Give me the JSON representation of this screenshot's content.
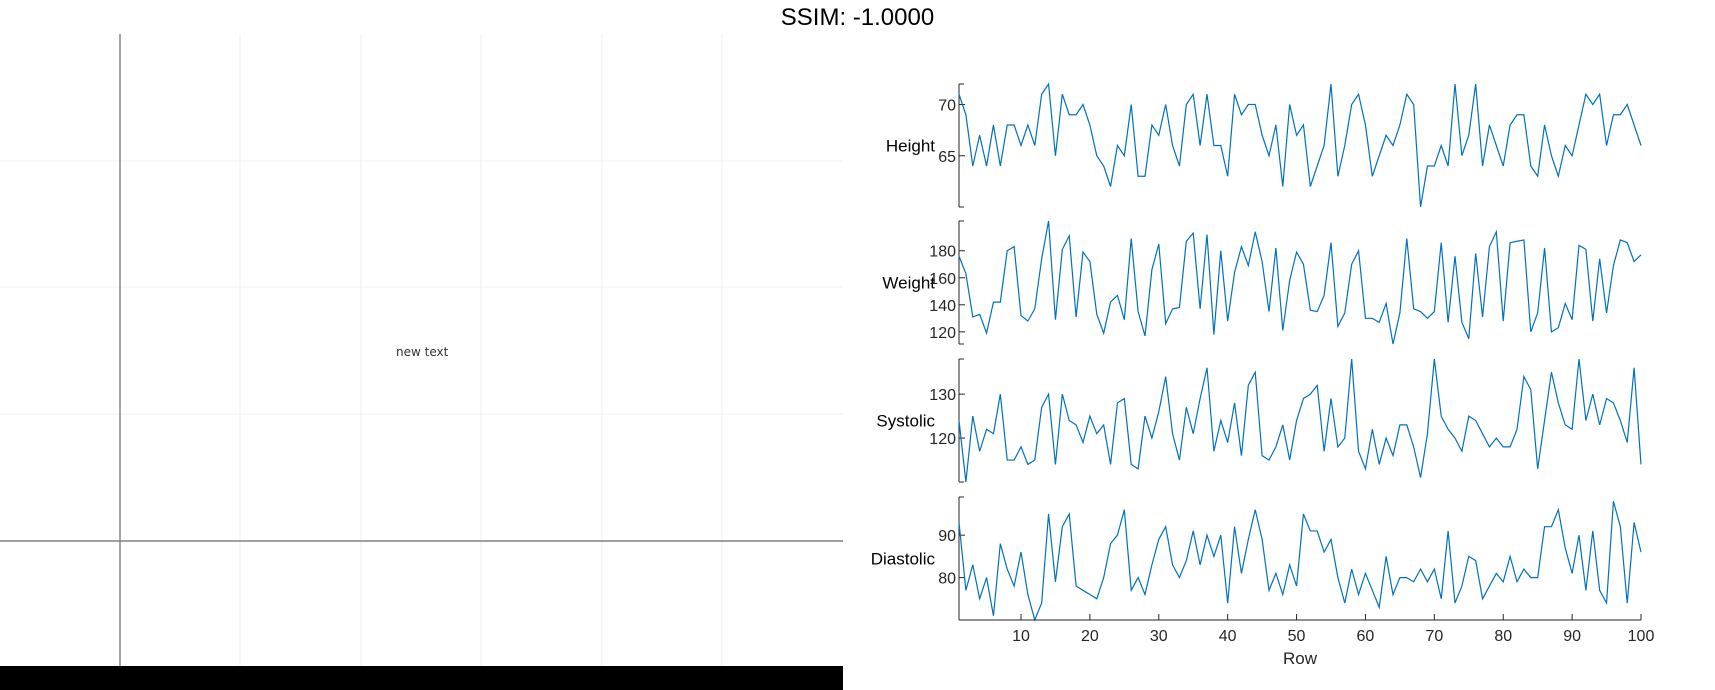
{
  "page_title": "SSIM: -1.0000",
  "left_panel": {
    "annotation": "new text"
  },
  "chart_data": {
    "type": "line",
    "xlabel": "Row",
    "xlim": [
      1,
      100
    ],
    "xticks": [
      10,
      20,
      30,
      40,
      50,
      60,
      70,
      80,
      90,
      100
    ],
    "x_start": 1,
    "series": [
      {
        "name": "Height",
        "ylim": [
          60,
          72
        ],
        "yticks": [
          65,
          70
        ],
        "values": [
          71,
          69,
          64,
          67,
          64,
          68,
          64,
          68,
          68,
          66,
          68,
          66,
          71,
          72,
          65,
          71,
          69,
          69,
          70,
          68,
          65,
          64,
          62,
          66,
          65,
          70,
          63,
          63,
          68,
          67,
          70,
          66,
          64,
          70,
          71,
          66,
          71,
          66,
          66,
          63,
          71,
          69,
          70,
          70,
          67,
          65,
          68,
          62,
          70,
          67,
          68,
          62,
          64,
          66,
          72,
          63,
          66,
          70,
          71,
          68,
          63,
          65,
          67,
          66,
          68,
          71,
          70,
          60,
          64,
          64,
          66,
          64,
          72,
          65,
          67,
          72,
          64,
          68,
          66,
          64,
          68,
          69,
          69,
          64,
          63,
          68,
          65,
          63,
          66,
          65,
          68,
          71,
          70,
          71,
          66,
          69,
          69,
          70,
          68,
          66
        ]
      },
      {
        "name": "Weight",
        "ylim": [
          111,
          202
        ],
        "yticks": [
          120,
          140,
          160,
          180
        ],
        "values": [
          176,
          163,
          131,
          133,
          119,
          142,
          142,
          180,
          183,
          132,
          128,
          137,
          174,
          202,
          129,
          181,
          191,
          131,
          179,
          172,
          133,
          119,
          142,
          147,
          129,
          189,
          135,
          117,
          166,
          185,
          126,
          137,
          138,
          187,
          193,
          137,
          192,
          118,
          180,
          128,
          164,
          183,
          169,
          194,
          172,
          135,
          182,
          121,
          158,
          179,
          170,
          136,
          135,
          147,
          186,
          124,
          134,
          170,
          180,
          130,
          130,
          127,
          141,
          111,
          134,
          189,
          137,
          135,
          130,
          135,
          186,
          127,
          176,
          127,
          115,
          178,
          131,
          183,
          194,
          128,
          186,
          187,
          188,
          120,
          134,
          182,
          120,
          123,
          141,
          129,
          184,
          181,
          128,
          174,
          134,
          169,
          188,
          186,
          172,
          177
        ]
      },
      {
        "name": "Systolic",
        "ylim": [
          110,
          138
        ],
        "yticks": [
          120,
          130
        ],
        "values": [
          124,
          110,
          125,
          117,
          122,
          121,
          130,
          115,
          115,
          118,
          114,
          115,
          127,
          130,
          114,
          130,
          124,
          123,
          119,
          125,
          121,
          123,
          114,
          128,
          129,
          114,
          113,
          125,
          120,
          126,
          134,
          121,
          115,
          127,
          121,
          129,
          136,
          117,
          124,
          119,
          128,
          116,
          132,
          135,
          116,
          115,
          118,
          123,
          115,
          124,
          129,
          130,
          132,
          117,
          129,
          118,
          120,
          138,
          117,
          113,
          122,
          114,
          120,
          116,
          123,
          123,
          118,
          111,
          121,
          138,
          125,
          122,
          120,
          117,
          125,
          124,
          121,
          118,
          120,
          118,
          118,
          122,
          134,
          131,
          113,
          124,
          135,
          128,
          123,
          122,
          138,
          124,
          130,
          123,
          129,
          128,
          124,
          119,
          136,
          114
        ]
      },
      {
        "name": "Diastolic",
        "ylim": [
          70,
          99
        ],
        "yticks": [
          80,
          90
        ],
        "values": [
          93,
          77,
          83,
          75,
          80,
          71,
          88,
          82,
          78,
          86,
          76,
          70,
          74,
          95,
          79,
          92,
          95,
          78,
          77,
          76,
          75,
          80,
          88,
          90,
          96,
          77,
          80,
          76,
          83,
          89,
          92,
          83,
          80,
          84,
          91,
          83,
          90,
          85,
          90,
          74,
          92,
          81,
          89,
          96,
          89,
          77,
          81,
          76,
          83,
          78,
          95,
          91,
          91,
          86,
          89,
          80,
          74,
          82,
          76,
          81,
          77,
          73,
          85,
          76,
          80,
          80,
          79,
          82,
          79,
          82,
          75,
          91,
          74,
          78,
          85,
          84,
          75,
          78,
          81,
          79,
          85,
          79,
          82,
          80,
          80,
          92,
          92,
          96,
          87,
          81,
          90,
          77,
          91,
          77,
          74,
          98,
          92,
          74,
          93,
          86
        ]
      }
    ]
  }
}
